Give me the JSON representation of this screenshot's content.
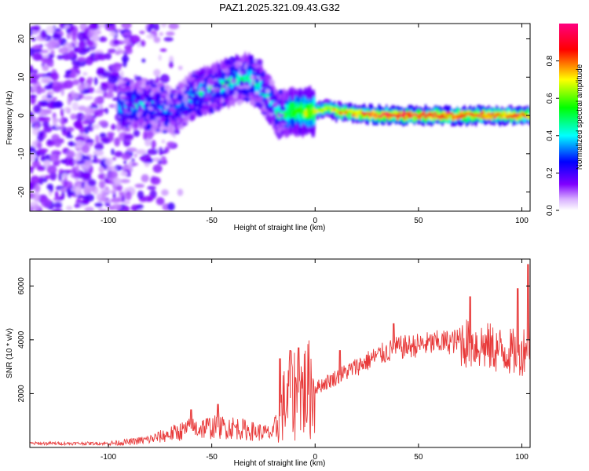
{
  "title": "PAZ1.2025.321.09.43.G32",
  "chart_data": [
    {
      "type": "heatmap",
      "name": "spectrogram",
      "xlabel": "Height of straight line (km)",
      "ylabel": "Frequency (Hz)",
      "xlim": [
        -138,
        104
      ],
      "ylim": [
        -25,
        24
      ],
      "xticks": [
        -100,
        -50,
        0,
        50,
        100
      ],
      "yticks": [
        -20,
        -10,
        0,
        10,
        20
      ],
      "colorbar": {
        "label": "Normalized spectral amplitude",
        "range": [
          0,
          1
        ],
        "ticks": [
          0.0,
          0.2,
          0.4,
          0.6,
          0.8
        ],
        "colormap": [
          "#ffffff",
          "#d8b0ff",
          "#8000ff",
          "#0000ff",
          "#00ffff",
          "#00ff00",
          "#ffff00",
          "#ff0000",
          "#ff0080"
        ]
      },
      "ridge": [
        {
          "x": -95,
          "y": 2,
          "amp": 0.35
        },
        {
          "x": -85,
          "y": 3,
          "amp": 0.4
        },
        {
          "x": -75,
          "y": 2,
          "amp": 0.35
        },
        {
          "x": -68,
          "y": 1,
          "amp": 0.3
        },
        {
          "x": -60,
          "y": 5,
          "amp": 0.4
        },
        {
          "x": -50,
          "y": 7,
          "amp": 0.45
        },
        {
          "x": -40,
          "y": 9,
          "amp": 0.45
        },
        {
          "x": -33,
          "y": 10,
          "amp": 0.45
        },
        {
          "x": -27,
          "y": 8,
          "amp": 0.45
        },
        {
          "x": -22,
          "y": 4,
          "amp": 0.4
        },
        {
          "x": -18,
          "y": 0,
          "amp": 0.45
        },
        {
          "x": -10,
          "y": 1,
          "amp": 0.6
        },
        {
          "x": 0,
          "y": 1,
          "amp": 0.65
        },
        {
          "x": 6,
          "y": 2,
          "amp": 0.65
        },
        {
          "x": 10,
          "y": 1,
          "amp": 0.7
        },
        {
          "x": 20,
          "y": 0.5,
          "amp": 0.8
        },
        {
          "x": 40,
          "y": 0,
          "amp": 0.9
        },
        {
          "x": 60,
          "y": 0,
          "amp": 0.85
        },
        {
          "x": 80,
          "y": 0,
          "amp": 0.85
        },
        {
          "x": 104,
          "y": 0,
          "amp": 0.8
        }
      ],
      "noise_region_x": [
        -138,
        -90
      ]
    },
    {
      "type": "line",
      "name": "snr",
      "xlabel": "Height of straight line (km)",
      "ylabel": "SNR (10 * v/v)",
      "xlim": [
        -138,
        104
      ],
      "ylim": [
        0,
        7000
      ],
      "xticks": [
        -100,
        -50,
        0,
        50,
        100
      ],
      "yticks": [
        2000,
        4000,
        6000
      ],
      "color": "#e83a3a",
      "trend": [
        {
          "x": -138,
          "y": 150
        },
        {
          "x": -100,
          "y": 150
        },
        {
          "x": -90,
          "y": 200
        },
        {
          "x": -80,
          "y": 300
        },
        {
          "x": -70,
          "y": 500
        },
        {
          "x": -60,
          "y": 700
        },
        {
          "x": -50,
          "y": 750
        },
        {
          "x": -40,
          "y": 750
        },
        {
          "x": -30,
          "y": 600
        },
        {
          "x": -20,
          "y": 500
        },
        {
          "x": -15,
          "y": 1600
        },
        {
          "x": -10,
          "y": 2000
        },
        {
          "x": 0,
          "y": 2200
        },
        {
          "x": 10,
          "y": 2600
        },
        {
          "x": 20,
          "y": 3000
        },
        {
          "x": 30,
          "y": 3400
        },
        {
          "x": 40,
          "y": 3700
        },
        {
          "x": 50,
          "y": 3800
        },
        {
          "x": 60,
          "y": 3900
        },
        {
          "x": 70,
          "y": 3950
        },
        {
          "x": 80,
          "y": 3800
        },
        {
          "x": 90,
          "y": 3600
        },
        {
          "x": 100,
          "y": 3500
        },
        {
          "x": 104,
          "y": 4200
        }
      ],
      "spikes": [
        {
          "x": -60,
          "y": 1400
        },
        {
          "x": -47,
          "y": 1600
        },
        {
          "x": -17,
          "y": 3300
        },
        {
          "x": -12,
          "y": 3600
        },
        {
          "x": -8,
          "y": 3700
        },
        {
          "x": 12,
          "y": 3600
        },
        {
          "x": 38,
          "y": 4600
        },
        {
          "x": 75,
          "y": 5600
        },
        {
          "x": 98,
          "y": 5900
        },
        {
          "x": 103,
          "y": 6800
        }
      ]
    }
  ]
}
